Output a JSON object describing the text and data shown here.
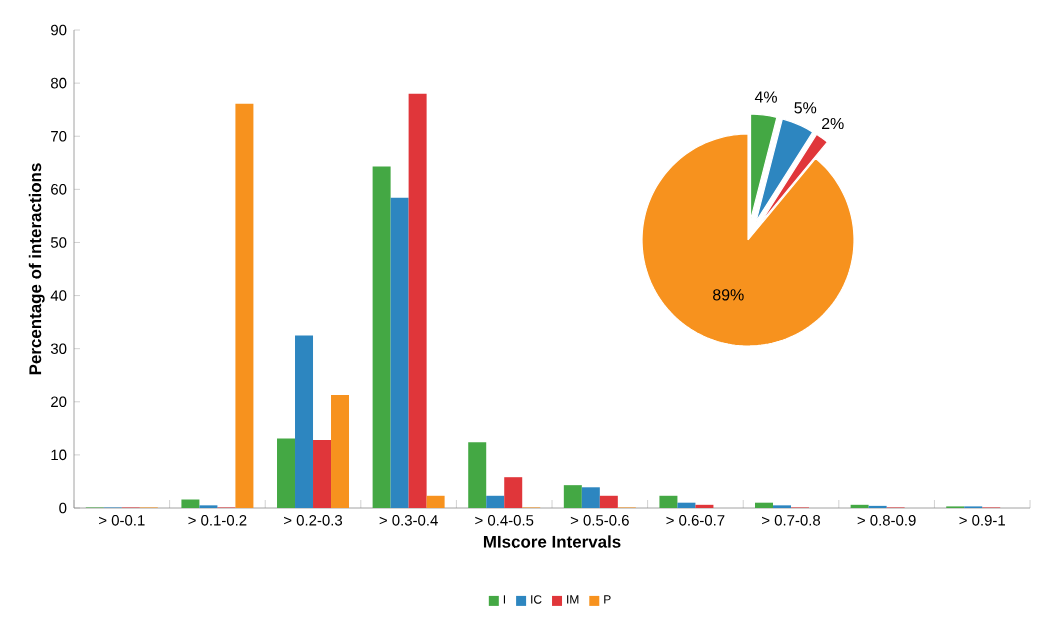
{
  "chart_data": [
    {
      "type": "bar",
      "xlabel": "MIscore Intervals",
      "ylabel": "Percentage of interactions",
      "categories": [
        "> 0-0.1",
        "> 0.1-0.2",
        "> 0.2-0.3",
        "> 0.3-0.4",
        "> 0.4-0.5",
        "> 0.5-0.6",
        "> 0.6-0.7",
        "> 0.7-0.8",
        "> 0.8-0.9",
        "> 0.9-1"
      ],
      "series": [
        {
          "name": "I",
          "color": "#44a844",
          "values": [
            0.1,
            1.6,
            13.1,
            64.3,
            12.4,
            4.3,
            2.3,
            1.0,
            0.6,
            0.3
          ]
        },
        {
          "name": "IC",
          "color": "#2d86c0",
          "values": [
            0.1,
            0.5,
            32.5,
            58.4,
            2.3,
            3.9,
            1.0,
            0.5,
            0.4,
            0.3
          ]
        },
        {
          "name": "IM",
          "color": "#e0363a",
          "values": [
            0.1,
            0.1,
            12.8,
            78.0,
            5.8,
            2.3,
            0.6,
            0.1,
            0.1,
            0.1
          ]
        },
        {
          "name": "P",
          "color": "#f7921e",
          "values": [
            0.1,
            76.1,
            21.3,
            2.3,
            0.1,
            0.1,
            0,
            0,
            0,
            0
          ]
        }
      ],
      "ylim": [
        0,
        90
      ],
      "yticks": [
        0,
        10,
        20,
        30,
        40,
        50,
        60,
        70,
        80,
        90
      ],
      "legend": "bottom"
    },
    {
      "type": "pie",
      "categories": [
        null,
        null,
        null,
        null
      ],
      "values": [
        4,
        5,
        2,
        89
      ],
      "colors": [
        "#44a844",
        "#2d86c0",
        "#e0363a",
        "#f7921e"
      ],
      "value_labels": [
        "4%",
        "5%",
        "2%",
        "89%"
      ]
    }
  ]
}
